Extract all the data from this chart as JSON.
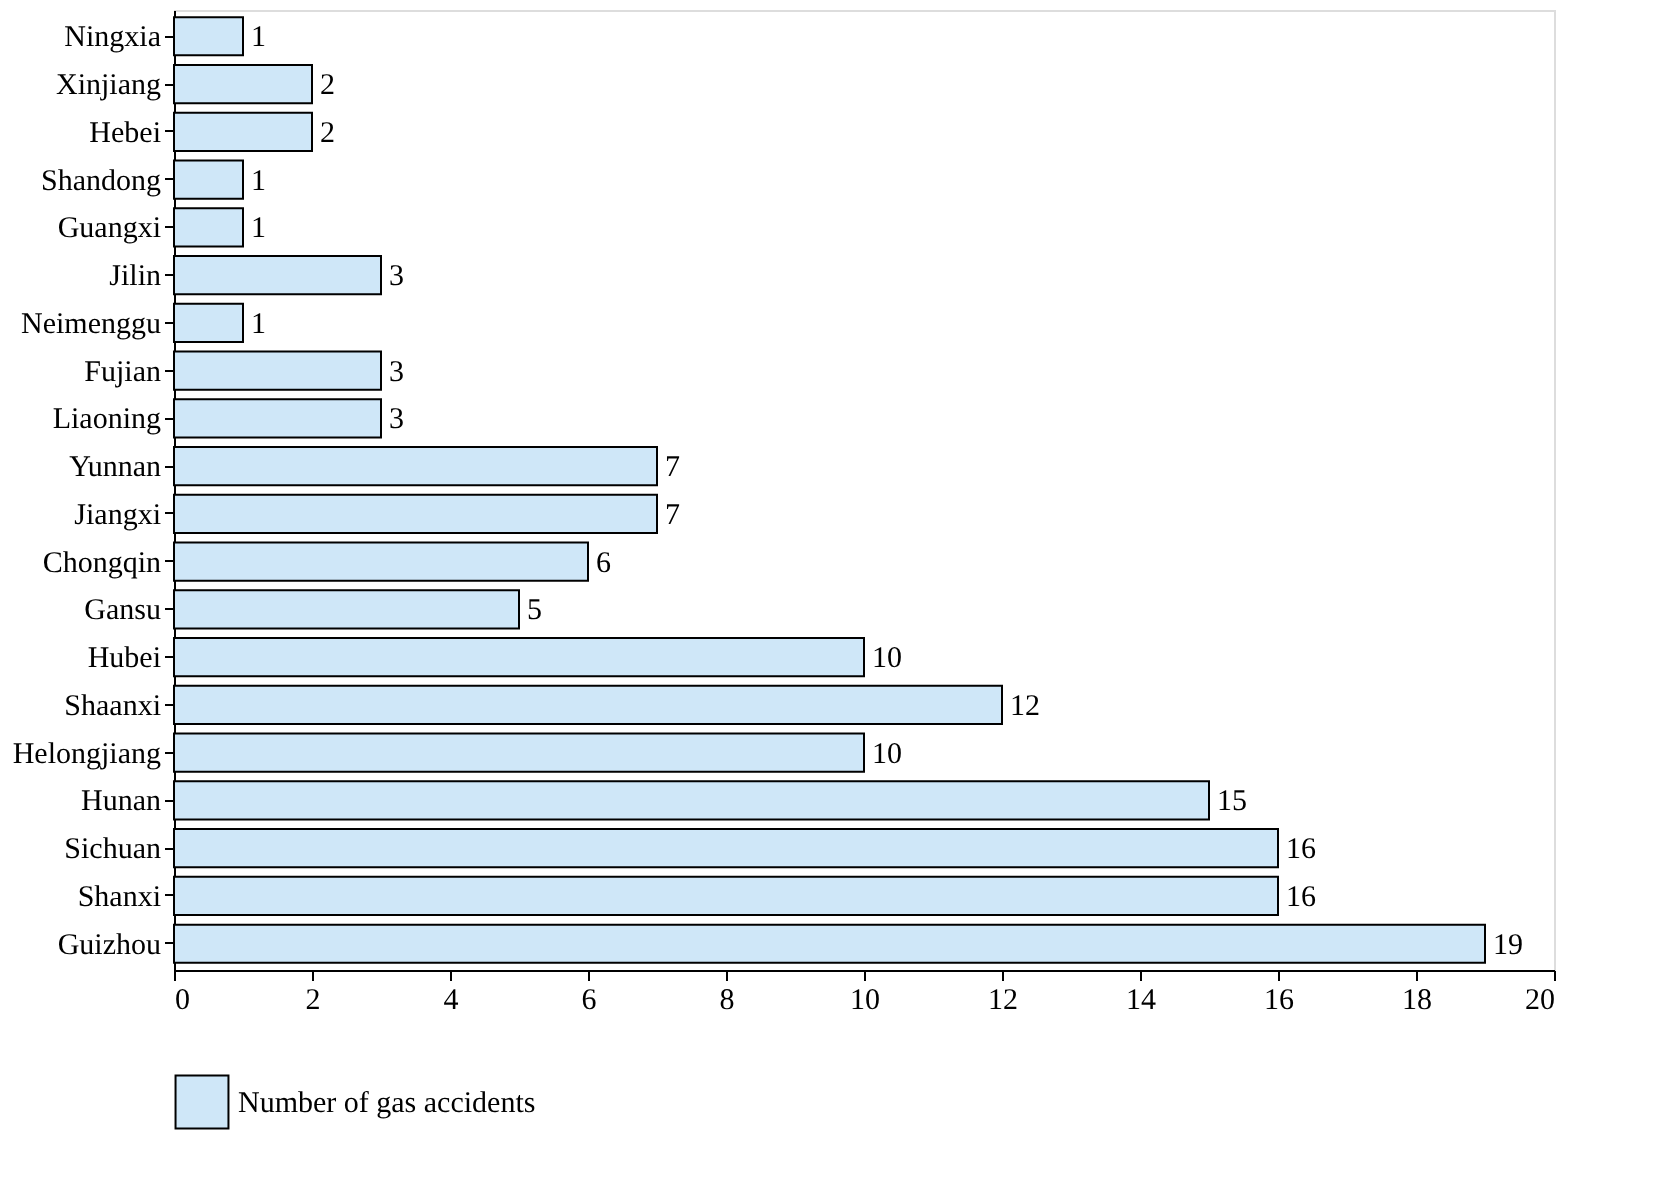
{
  "chart_data": {
    "type": "bar",
    "orientation": "horizontal",
    "categories": [
      "Ningxia",
      "Xinjiang",
      "Hebei",
      "Shandong",
      "Guangxi",
      "Jilin",
      "Neimenggu",
      "Fujian",
      "Liaoning",
      "Yunnan",
      "Jiangxi",
      "Chongqin",
      "Gansu",
      "Hubei",
      "Shaanxi",
      "Helongjiang",
      "Hunan",
      "Sichuan",
      "Shanxi",
      "Guizhou"
    ],
    "series": [
      {
        "name": "Number of gas accidents",
        "color": "#cfe7f8",
        "values": [
          1,
          2,
          2,
          1,
          1,
          3,
          1,
          3,
          3,
          7,
          7,
          6,
          5,
          10,
          12,
          10,
          15,
          16,
          16,
          19
        ]
      }
    ],
    "xlim": [
      0,
      20
    ],
    "xticks": [
      0,
      2,
      4,
      6,
      8,
      10,
      12,
      14,
      16,
      18,
      20
    ],
    "data_labels": true,
    "grid": false,
    "legend": "bottom"
  }
}
